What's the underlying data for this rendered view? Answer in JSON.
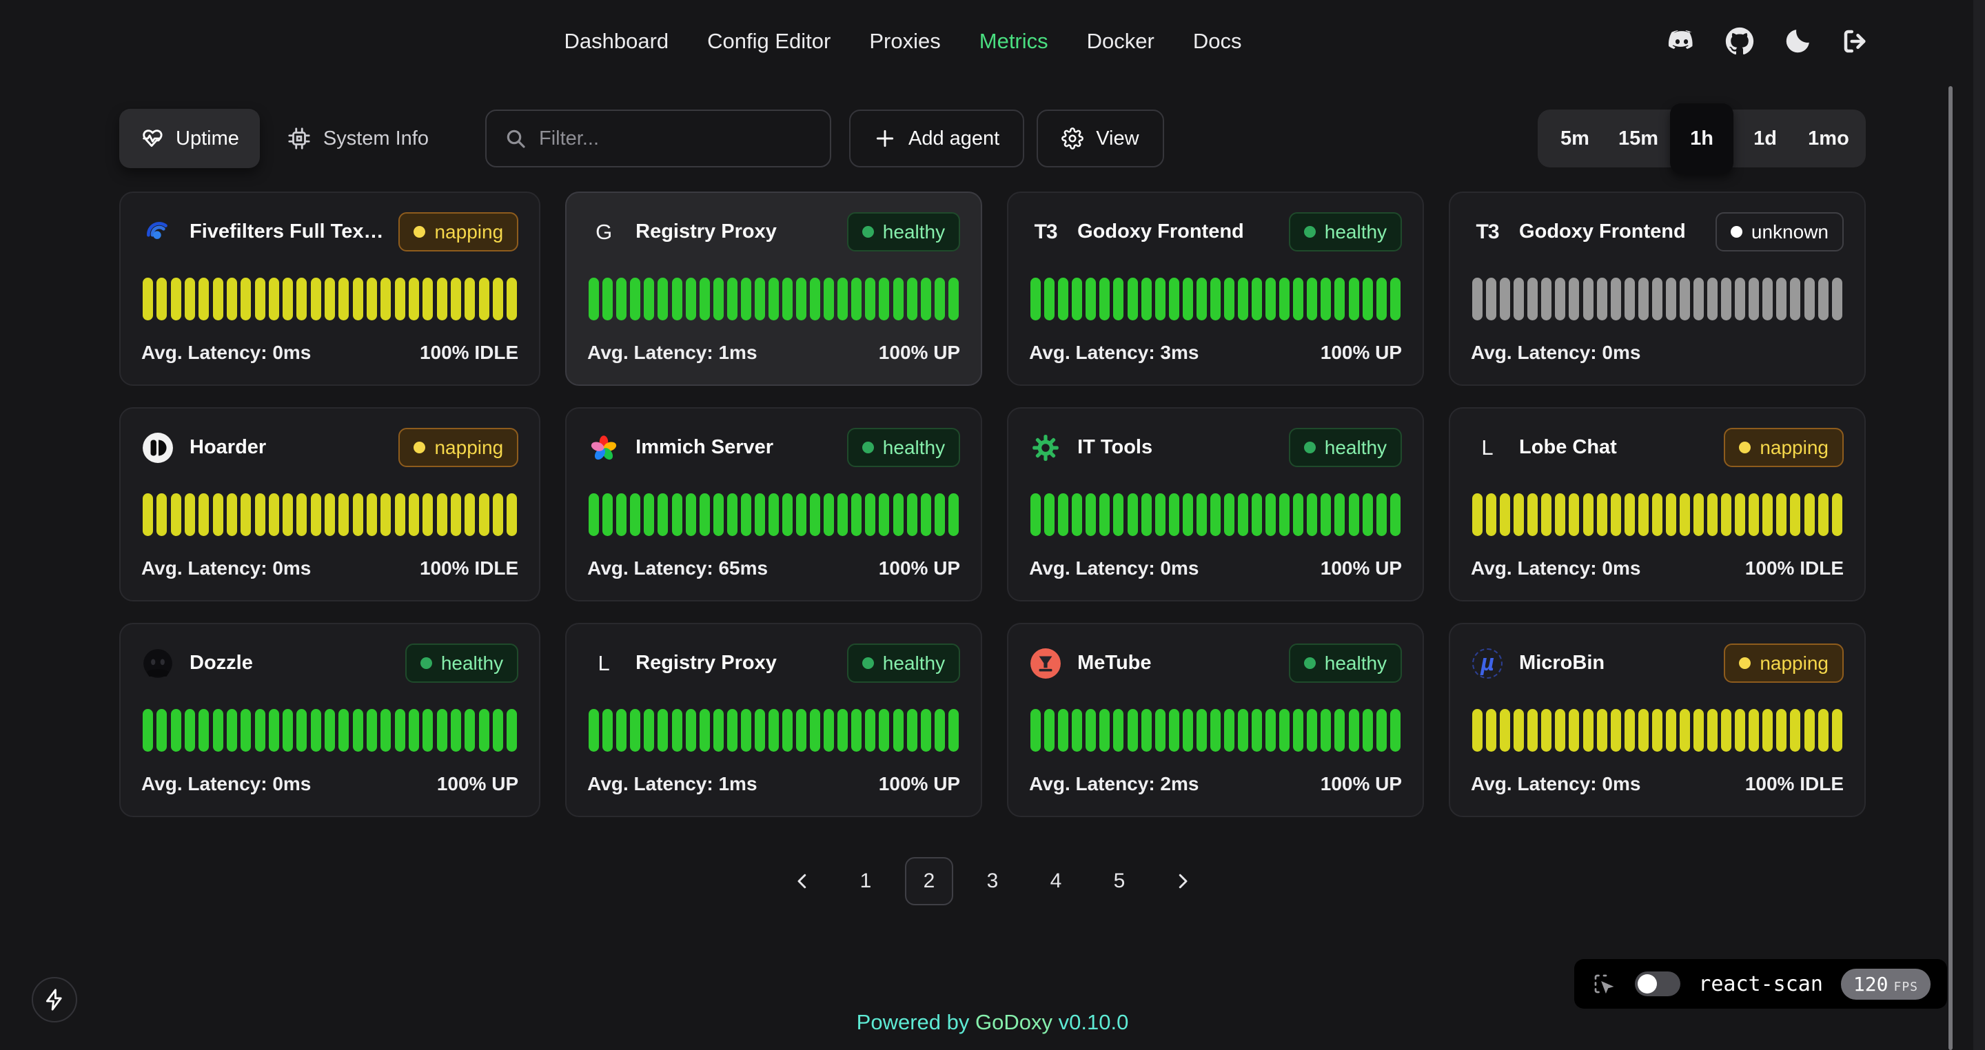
{
  "nav": {
    "items": [
      {
        "label": "Dashboard",
        "active": false
      },
      {
        "label": "Config Editor",
        "active": false
      },
      {
        "label": "Proxies",
        "active": false
      },
      {
        "label": "Metrics",
        "active": true
      },
      {
        "label": "Docker",
        "active": false
      },
      {
        "label": "Docs",
        "active": false
      }
    ]
  },
  "header": {
    "icons": [
      {
        "name": "discord-icon"
      },
      {
        "name": "github-icon"
      },
      {
        "name": "theme-moon-icon"
      },
      {
        "name": "logout-icon"
      }
    ]
  },
  "toolbar": {
    "tabs": [
      {
        "label": "Uptime",
        "icon": "heart-pulse-icon",
        "active": true
      },
      {
        "label": "System Info",
        "icon": "cpu-icon",
        "active": false
      }
    ],
    "filter_placeholder": "Filter...",
    "add_agent_label": "Add agent",
    "view_label": "View",
    "time_ranges": [
      {
        "label": "5m",
        "active": false
      },
      {
        "label": "15m",
        "active": false
      },
      {
        "label": "1h",
        "active": true
      },
      {
        "label": "1d",
        "active": false
      },
      {
        "label": "1mo",
        "active": false
      }
    ]
  },
  "statuses": {
    "healthy": {
      "label": "healthy",
      "bar": "#2ecc2e",
      "text": "#86efac",
      "dot": "#2fa95c",
      "bg": "#0e2517",
      "border": "#1f4a2b"
    },
    "napping": {
      "label": "napping",
      "bar": "#d8d820",
      "text": "#f6d84b",
      "dot": "#f6d84b",
      "bg": "#3b2a10",
      "border": "#8e5c1d"
    },
    "unknown": {
      "label": "unknown",
      "bar": "#999999",
      "text": "#ffffff",
      "dot": "#ffffff",
      "bg": "transparent",
      "border": "#3f3f44"
    }
  },
  "bars_per_card": 27,
  "cards": [
    {
      "title": "Fivefilters Full Tex…",
      "icon": "fivefilters-icon",
      "status": "napping",
      "latency_text": "Avg. Latency: 0ms",
      "uptime_text": "100% IDLE",
      "highlight": false
    },
    {
      "title": "Registry Proxy",
      "icon": "letter-icon",
      "icon_text": "G",
      "status": "healthy",
      "latency_text": "Avg. Latency: 1ms",
      "uptime_text": "100% UP",
      "highlight": true
    },
    {
      "title": "Godoxy Frontend",
      "icon": "t3-icon",
      "icon_text": "T3",
      "status": "healthy",
      "latency_text": "Avg. Latency: 3ms",
      "uptime_text": "100% UP",
      "highlight": false
    },
    {
      "title": "Godoxy Frontend",
      "icon": "t3-icon",
      "icon_text": "T3",
      "status": "unknown",
      "latency_text": "Avg. Latency: 0ms",
      "uptime_text": "",
      "highlight": false
    },
    {
      "title": "Hoarder",
      "icon": "hoarder-icon",
      "status": "napping",
      "latency_text": "Avg. Latency: 0ms",
      "uptime_text": "100% IDLE",
      "highlight": false
    },
    {
      "title": "Immich Server",
      "icon": "immich-icon",
      "status": "healthy",
      "latency_text": "Avg. Latency: 65ms",
      "uptime_text": "100% UP",
      "highlight": false
    },
    {
      "title": "IT Tools",
      "icon": "it-tools-icon",
      "status": "healthy",
      "latency_text": "Avg. Latency: 0ms",
      "uptime_text": "100% UP",
      "highlight": false
    },
    {
      "title": "Lobe Chat",
      "icon": "letter-icon",
      "icon_text": "L",
      "status": "napping",
      "latency_text": "Avg. Latency: 0ms",
      "uptime_text": "100% IDLE",
      "highlight": false
    },
    {
      "title": "Dozzle",
      "icon": "dozzle-icon",
      "status": "healthy",
      "latency_text": "Avg. Latency: 0ms",
      "uptime_text": "100% UP",
      "highlight": false
    },
    {
      "title": "Registry Proxy",
      "icon": "letter-icon",
      "icon_text": "L",
      "status": "healthy",
      "latency_text": "Avg. Latency: 1ms",
      "uptime_text": "100% UP",
      "highlight": false
    },
    {
      "title": "MeTube",
      "icon": "metube-icon",
      "status": "healthy",
      "latency_text": "Avg. Latency: 2ms",
      "uptime_text": "100% UP",
      "highlight": false
    },
    {
      "title": "MicroBin",
      "icon": "microbin-icon",
      "status": "napping",
      "latency_text": "Avg. Latency: 0ms",
      "uptime_text": "100% IDLE",
      "highlight": false
    }
  ],
  "pagination": {
    "pages": [
      "1",
      "2",
      "3",
      "4",
      "5"
    ],
    "active_page": "2"
  },
  "footer": {
    "powered_by": "Powered by",
    "brand": "GoDoxy",
    "version": "v0.10.0"
  },
  "react_scan": {
    "label": "react-scan",
    "fps": "120",
    "fps_unit": "FPS"
  },
  "colors": {
    "page_bg": "#161618",
    "card_bg": "#1c1c1f",
    "accent_green": "#4ade80",
    "footer_teal": "#5eead4"
  }
}
